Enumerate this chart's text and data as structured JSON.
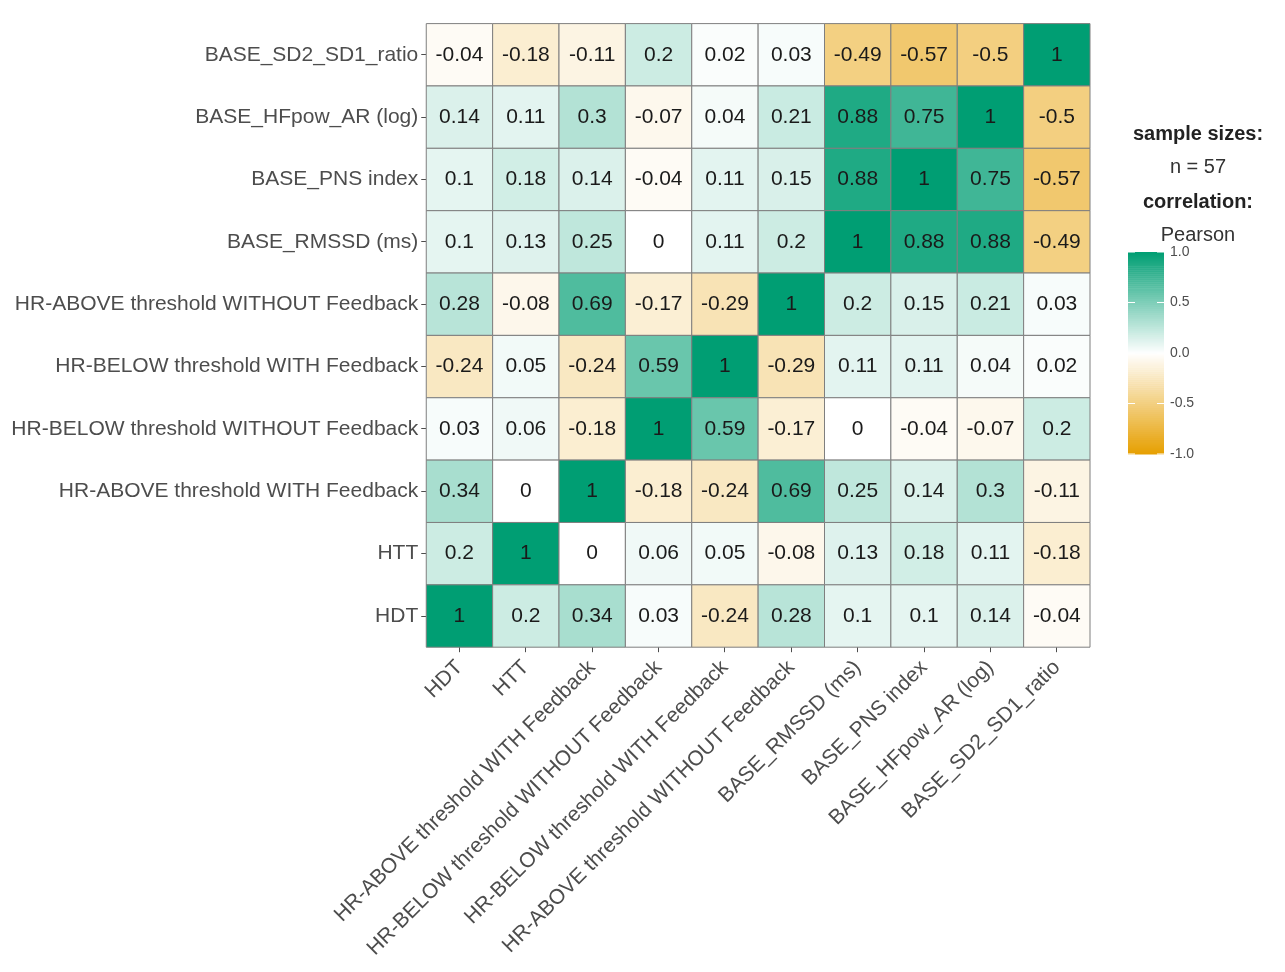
{
  "chart_data": {
    "type": "heatmap",
    "categories": [
      "HDT",
      "HTT",
      "HR-ABOVE threshold WITH Feedback",
      "HR-BELOW threshold WITHOUT Feedback",
      "HR-BELOW threshold WITH Feedback",
      "HR-ABOVE threshold WITHOUT Feedback",
      "BASE_RMSSD (ms)",
      "BASE_PNS index",
      "BASE_HFpow_AR (log)",
      "BASE_SD2_SD1_ratio"
    ],
    "y_categories": [
      "BASE_SD2_SD1_ratio",
      "BASE_HFpow_AR (log)",
      "BASE_PNS index",
      "BASE_RMSSD (ms)",
      "HR-ABOVE threshold WITHOUT Feedback",
      "HR-BELOW threshold WITH Feedback",
      "HR-BELOW threshold WITHOUT Feedback",
      "HR-ABOVE threshold WITH Feedback",
      "HTT",
      "HDT"
    ],
    "cells": [
      [
        -0.04,
        -0.18,
        -0.11,
        0.2,
        0.02,
        0.03,
        -0.49,
        -0.57,
        -0.5,
        1
      ],
      [
        0.14,
        0.11,
        0.3,
        -0.07,
        0.04,
        0.21,
        0.88,
        0.75,
        1,
        -0.5
      ],
      [
        0.1,
        0.18,
        0.14,
        -0.04,
        0.11,
        0.15,
        0.88,
        1,
        0.75,
        -0.57
      ],
      [
        0.1,
        0.13,
        0.25,
        0,
        0.11,
        0.2,
        1,
        0.88,
        0.88,
        -0.49
      ],
      [
        0.28,
        -0.08,
        0.69,
        -0.17,
        -0.29,
        1,
        0.2,
        0.15,
        0.21,
        0.03
      ],
      [
        -0.24,
        0.05,
        -0.24,
        0.59,
        1,
        -0.29,
        0.11,
        0.11,
        0.04,
        0.02
      ],
      [
        0.03,
        0.06,
        -0.18,
        1,
        0.59,
        -0.17,
        0,
        -0.04,
        -0.07,
        0.2
      ],
      [
        0.34,
        0,
        1,
        -0.18,
        -0.24,
        0.69,
        0.25,
        0.14,
        0.3,
        -0.11
      ],
      [
        0.2,
        1,
        0,
        0.06,
        0.05,
        -0.08,
        0.13,
        0.18,
        0.11,
        -0.18
      ],
      [
        1,
        0.2,
        0.34,
        0.03,
        -0.24,
        0.28,
        0.1,
        0.1,
        0.14,
        -0.04
      ]
    ],
    "data_labels": true,
    "colors": [
      "#e69f00",
      "#ffffff",
      "#009e73"
    ],
    "clim": [
      -1,
      1
    ],
    "cticks": [
      {
        "value": 1,
        "label": "1.0"
      },
      {
        "value": 0.5,
        "label": "0.5"
      },
      {
        "value": 0,
        "label": "0.0"
      },
      {
        "value": -0.5,
        "label": "-0.5"
      },
      {
        "value": -1,
        "label": "-1.0"
      }
    ],
    "annotations": [
      "sample sizes:",
      "n = 57",
      "correlation:",
      "Pearson"
    ]
  }
}
